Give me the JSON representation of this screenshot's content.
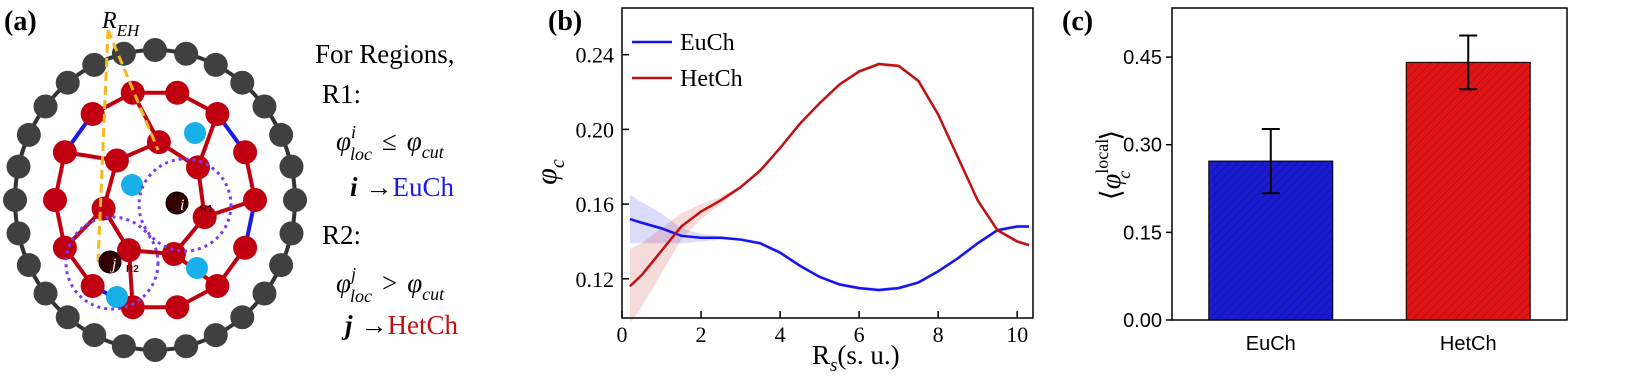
{
  "panel_labels": [
    "(a)",
    "(b)",
    "(c)"
  ],
  "diagram": {
    "radius_label": {
      "base": "R",
      "sub": "EH"
    },
    "heading": "For Regions,",
    "regions": [
      {
        "name": "R1:",
        "formula": {
          "lhs": "φ",
          "sup": "i",
          "sub": "loc",
          "op": "≤",
          "rhs": "φ",
          "rhs_sub": "cut"
        },
        "index": "i",
        "arrow": "→",
        "class": "EuCh"
      },
      {
        "name": "R2:",
        "formula": {
          "lhs": "φ",
          "sup": "j",
          "sub": "loc",
          "op": ">",
          "rhs": "φ",
          "rhs_sub": "cut"
        },
        "index": "j",
        "arrow": "→",
        "class": "HetCh"
      }
    ],
    "node_labels": [
      "i",
      "j"
    ],
    "region_tags": [
      "R1",
      "R2"
    ]
  },
  "chart_data": [
    {
      "type": "line",
      "xlabel": {
        "base": "R",
        "sub": "s",
        "unit": "(s. u.)"
      },
      "ylabel": {
        "base": "φ",
        "sub": "c"
      },
      "x": [
        0.2,
        0.5,
        1,
        1.5,
        2,
        2.5,
        3,
        3.5,
        4,
        4.5,
        5,
        5.5,
        6,
        6.5,
        7,
        7.5,
        8,
        8.5,
        9,
        9.5,
        10,
        10.3
      ],
      "series": [
        {
          "name": "EuCh",
          "color": "#1414f0",
          "values": [
            0.152,
            0.15,
            0.147,
            0.143,
            0.142,
            0.142,
            0.141,
            0.139,
            0.134,
            0.127,
            0.121,
            0.117,
            0.115,
            0.114,
            0.115,
            0.118,
            0.124,
            0.131,
            0.139,
            0.146,
            0.148,
            0.148
          ],
          "error": [
            0.013,
            0.011,
            0.008,
            0.004,
            0.002,
            0.001,
            0.001,
            0.001,
            0.001,
            0.001,
            0.001,
            0.001,
            0.001,
            0.001,
            0.001,
            0.001,
            0.001,
            0.001,
            0.001,
            0.001,
            0.001,
            0.001
          ]
        },
        {
          "name": "HetCh",
          "color": "#c01010",
          "values": [
            0.116,
            0.122,
            0.135,
            0.148,
            0.156,
            0.162,
            0.169,
            0.178,
            0.19,
            0.203,
            0.214,
            0.224,
            0.231,
            0.235,
            0.234,
            0.226,
            0.208,
            0.185,
            0.162,
            0.146,
            0.14,
            0.138
          ],
          "error": [
            0.02,
            0.017,
            0.012,
            0.007,
            0.004,
            0.002,
            0.001,
            0.001,
            0.001,
            0.001,
            0.001,
            0.001,
            0.001,
            0.001,
            0.001,
            0.001,
            0.001,
            0.001,
            0.001,
            0.001,
            0.001,
            0.001
          ]
        }
      ],
      "xlim": [
        0,
        10.4
      ],
      "xticks": [
        0,
        2,
        4,
        6,
        8,
        10
      ],
      "ylim": [
        0.099,
        0.265
      ],
      "yticks": [
        0.12,
        0.16,
        {
          "value": 0.2,
          "label": "0.20"
        },
        0.24
      ],
      "legend": "upper left"
    },
    {
      "type": "bar",
      "ylabel": {
        "open": "⟨",
        "base": "φ",
        "sub": "c",
        "sup": "local",
        "close": "⟩"
      },
      "categories": [
        "EuCh",
        "HetCh"
      ],
      "values": [
        0.272,
        0.441
      ],
      "errors": [
        0.055,
        0.046
      ],
      "colors": [
        "#1a1ad0",
        "#e01414"
      ],
      "hatch": true,
      "ylim": [
        0,
        0.534
      ],
      "yticks": [
        {
          "value": 0,
          "label": "0.00"
        },
        0.15,
        {
          "value": 0.3,
          "label": "0.30"
        },
        0.45
      ]
    }
  ]
}
